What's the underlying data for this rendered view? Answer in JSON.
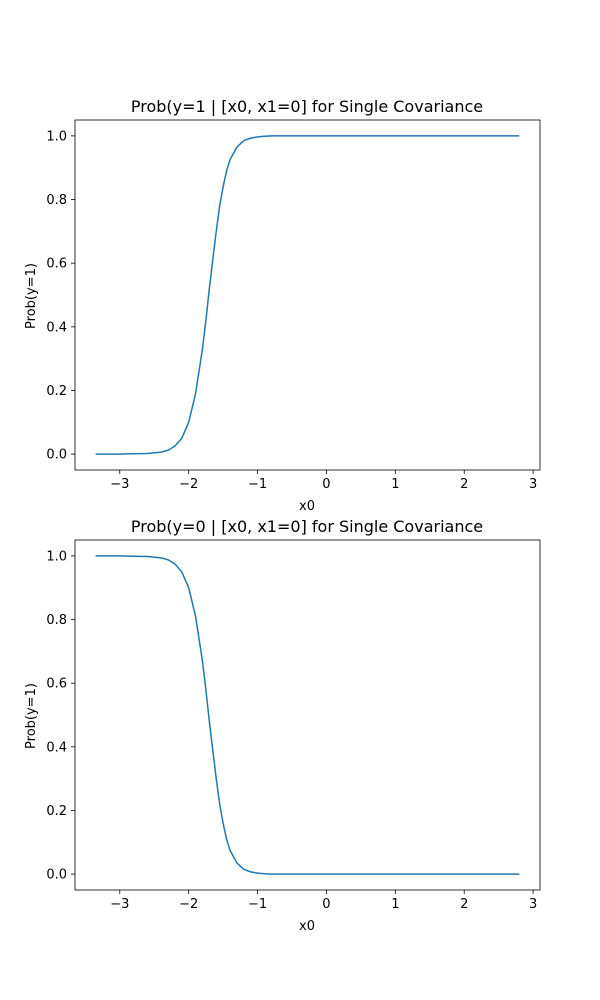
{
  "chart_data": [
    {
      "type": "line",
      "title": "Prob(y=1 | [x0, x1=0] for Single Covariance",
      "xlabel": "x0",
      "ylabel": "Prob(y=1)",
      "xlim": [
        -3.65,
        3.1
      ],
      "ylim": [
        -0.05,
        1.05
      ],
      "xticks": [
        -3,
        -2,
        -1,
        0,
        1,
        2,
        3
      ],
      "xtick_labels": [
        "−3",
        "−2",
        "−1",
        "0",
        "1",
        "2",
        "3"
      ],
      "yticks": [
        0.0,
        0.2,
        0.4,
        0.6,
        0.8,
        1.0
      ],
      "ytick_labels": [
        "0.0",
        "0.2",
        "0.4",
        "0.6",
        "0.8",
        "1.0"
      ],
      "grid": false,
      "legend": "none",
      "series": [
        {
          "color": "#1f77b4",
          "x": [
            -3.35,
            -3.0,
            -2.8,
            -2.6,
            -2.4,
            -2.3,
            -2.2,
            -2.1,
            -2.0,
            -1.9,
            -1.8,
            -1.75,
            -1.7,
            -1.65,
            -1.6,
            -1.55,
            -1.5,
            -1.45,
            -1.4,
            -1.3,
            -1.2,
            -1.1,
            -1.0,
            -0.9,
            -0.8,
            -0.6,
            -0.4,
            -0.2,
            0.0,
            0.5,
            1.0,
            1.5,
            2.0,
            2.5,
            2.8
          ],
          "y": [
            0.0,
            0.0,
            0.001,
            0.002,
            0.006,
            0.012,
            0.025,
            0.05,
            0.1,
            0.19,
            0.33,
            0.42,
            0.52,
            0.61,
            0.7,
            0.78,
            0.84,
            0.89,
            0.925,
            0.965,
            0.985,
            0.993,
            0.997,
            0.999,
            1.0,
            1.0,
            1.0,
            1.0,
            1.0,
            1.0,
            1.0,
            1.0,
            1.0,
            1.0,
            1.0
          ]
        }
      ]
    },
    {
      "type": "line",
      "title": "Prob(y=0 | [x0, x1=0] for Single Covariance",
      "xlabel": "x0",
      "ylabel": "Prob(y=1)",
      "xlim": [
        -3.65,
        3.1
      ],
      "ylim": [
        -0.05,
        1.05
      ],
      "xticks": [
        -3,
        -2,
        -1,
        0,
        1,
        2,
        3
      ],
      "xtick_labels": [
        "−3",
        "−2",
        "−1",
        "0",
        "1",
        "2",
        "3"
      ],
      "yticks": [
        0.0,
        0.2,
        0.4,
        0.6,
        0.8,
        1.0
      ],
      "ytick_labels": [
        "0.0",
        "0.2",
        "0.4",
        "0.6",
        "0.8",
        "1.0"
      ],
      "grid": false,
      "legend": "none",
      "series": [
        {
          "color": "#1f77b4",
          "x": [
            -3.35,
            -3.0,
            -2.8,
            -2.6,
            -2.4,
            -2.3,
            -2.2,
            -2.1,
            -2.0,
            -1.9,
            -1.8,
            -1.75,
            -1.7,
            -1.65,
            -1.6,
            -1.55,
            -1.5,
            -1.45,
            -1.4,
            -1.3,
            -1.2,
            -1.1,
            -1.0,
            -0.9,
            -0.8,
            -0.6,
            -0.4,
            -0.2,
            0.0,
            0.5,
            1.0,
            1.5,
            2.0,
            2.5,
            2.8
          ],
          "y": [
            1.0,
            1.0,
            0.999,
            0.998,
            0.994,
            0.988,
            0.975,
            0.95,
            0.9,
            0.81,
            0.67,
            0.58,
            0.48,
            0.39,
            0.3,
            0.22,
            0.16,
            0.11,
            0.075,
            0.035,
            0.015,
            0.007,
            0.003,
            0.001,
            0.0,
            0.0,
            0.0,
            0.0,
            0.0,
            0.0,
            0.0,
            0.0,
            0.0,
            0.0,
            0.0
          ]
        }
      ]
    }
  ]
}
